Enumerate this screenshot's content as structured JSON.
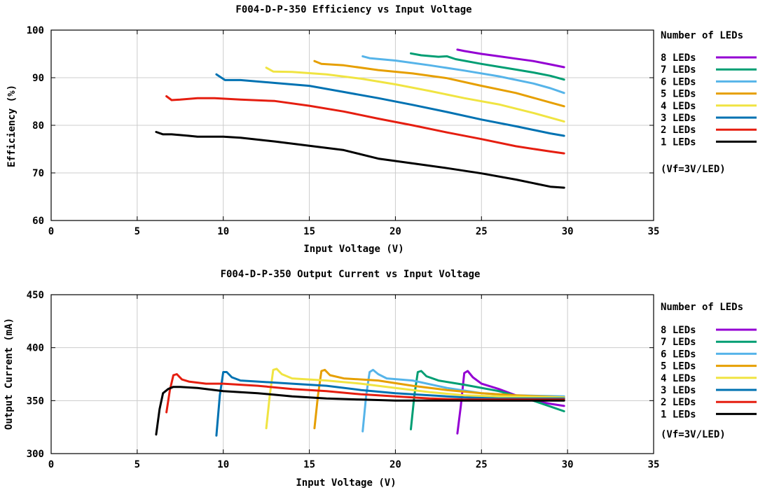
{
  "colors": {
    "8 LEDs": "#9400d3",
    "7 LEDs": "#009e73",
    "6 LEDs": "#56b4e9",
    "5 LEDs": "#e69f00",
    "4 LEDs": "#f0e442",
    "3 LEDs": "#0072b2",
    "2 LEDs": "#e51e10",
    "1 LEDs": "#000000"
  },
  "chart_data": [
    {
      "type": "line",
      "title": "F004-D-P-350 Efficiency vs Input Voltage",
      "xlabel": "Input Voltage (V)",
      "ylabel": "Efficiency (%)",
      "xlim": [
        0,
        35
      ],
      "ylim": [
        60,
        100
      ],
      "xticks": [
        "0",
        "5",
        "10",
        "15",
        "20",
        "25",
        "30",
        "35"
      ],
      "yticks": [
        "60",
        "70",
        "80",
        "90",
        "100"
      ],
      "grid": true,
      "legend": {
        "title": "Number of LEDs",
        "placement": "right",
        "note": "(Vf=3V/LED)",
        "entries": [
          "8 LEDs",
          "7 LEDs",
          "6 LEDs",
          "5 LEDs",
          "4 LEDs",
          "3 LEDs",
          "2 LEDs",
          "1 LEDs"
        ]
      },
      "series": [
        {
          "name": "8 LEDs",
          "x": [
            23.6,
            24.0,
            25,
            26,
            27,
            28,
            29,
            29.8
          ],
          "y": [
            95.9,
            95.6,
            95.0,
            94.5,
            94.0,
            93.5,
            92.8,
            92.2
          ]
        },
        {
          "name": "7 LEDs",
          "x": [
            20.9,
            21.5,
            22.5,
            23.0,
            23.5,
            25,
            26,
            27,
            28,
            29,
            29.8
          ],
          "y": [
            95.1,
            94.7,
            94.4,
            94.5,
            93.9,
            92.9,
            92.3,
            91.7,
            91.1,
            90.4,
            89.6
          ]
        },
        {
          "name": "6 LEDs",
          "x": [
            18.1,
            18.5,
            20,
            22,
            24,
            26,
            28,
            29,
            29.8
          ],
          "y": [
            94.5,
            94.1,
            93.6,
            92.6,
            91.5,
            90.3,
            88.8,
            87.8,
            86.8
          ]
        },
        {
          "name": "5 LEDs",
          "x": [
            15.3,
            15.7,
            17,
            19,
            21,
            23,
            25,
            27,
            29,
            29.8
          ],
          "y": [
            93.5,
            92.9,
            92.6,
            91.6,
            90.9,
            89.9,
            88.3,
            86.8,
            84.8,
            84.0
          ]
        },
        {
          "name": "4 LEDs",
          "x": [
            12.5,
            12.9,
            14,
            16,
            18,
            20,
            22,
            24,
            26,
            28,
            29.8
          ],
          "y": [
            92.1,
            91.3,
            91.2,
            90.7,
            89.8,
            88.6,
            87.2,
            85.7,
            84.4,
            82.6,
            80.8
          ]
        },
        {
          "name": "3 LEDs",
          "x": [
            9.6,
            10.1,
            11,
            13,
            15,
            17,
            19,
            21,
            23,
            25,
            27,
            29,
            29.8
          ],
          "y": [
            90.7,
            89.5,
            89.5,
            88.9,
            88.3,
            87.0,
            85.7,
            84.3,
            82.8,
            81.2,
            79.8,
            78.3,
            77.8
          ]
        },
        {
          "name": "2 LEDs",
          "x": [
            6.7,
            7.0,
            7.5,
            8.5,
            9.5,
            11,
            13,
            15,
            17,
            19,
            21,
            23,
            25,
            27,
            29,
            29.8
          ],
          "y": [
            86.1,
            85.3,
            85.4,
            85.7,
            85.7,
            85.4,
            85.1,
            84.1,
            82.9,
            81.4,
            80.0,
            78.5,
            77.1,
            75.6,
            74.5,
            74.1
          ]
        },
        {
          "name": "1 LEDs",
          "x": [
            6.1,
            6.5,
            7.0,
            8.0,
            8.5,
            9.0,
            10,
            11,
            13,
            15,
            17,
            19,
            21,
            23,
            25,
            27,
            29,
            29.8
          ],
          "y": [
            78.6,
            78.1,
            78.1,
            77.8,
            77.6,
            77.6,
            77.6,
            77.4,
            76.6,
            75.7,
            74.8,
            73.0,
            72.0,
            71.0,
            69.9,
            68.6,
            67.1,
            66.9
          ]
        }
      ]
    },
    {
      "type": "line",
      "title": "F004-D-P-350 Output Current vs Input Voltage",
      "xlabel": "Input Voltage (V)",
      "ylabel": "Output Current (mA)",
      "xlim": [
        0,
        35
      ],
      "ylim": [
        300,
        450
      ],
      "xticks": [
        "0",
        "5",
        "10",
        "15",
        "20",
        "25",
        "30",
        "35"
      ],
      "yticks": [
        "300",
        "350",
        "400",
        "450"
      ],
      "grid": true,
      "legend": {
        "title": "Number of LEDs",
        "placement": "right",
        "note": "(Vf=3V/LED)",
        "entries": [
          "8 LEDs",
          "7 LEDs",
          "6 LEDs",
          "5 LEDs",
          "4 LEDs",
          "3 LEDs",
          "2 LEDs",
          "1 LEDs"
        ]
      },
      "series": [
        {
          "name": "8 LEDs",
          "x": [
            23.6,
            23.8,
            24.0,
            24.2,
            24.5,
            25,
            26,
            27,
            28,
            29,
            29.8
          ],
          "y": [
            319,
            345,
            376,
            378,
            372,
            366,
            361,
            355,
            350,
            347,
            345
          ]
        },
        {
          "name": "7 LEDs",
          "x": [
            20.9,
            21.1,
            21.3,
            21.5,
            21.8,
            22.5,
            24,
            26,
            28,
            29.8
          ],
          "y": [
            323,
            355,
            377,
            378,
            373,
            369,
            365,
            359,
            350,
            340
          ]
        },
        {
          "name": "6 LEDs",
          "x": [
            18.1,
            18.3,
            18.5,
            18.7,
            19.0,
            19.5,
            21,
            23,
            25,
            27,
            29.8
          ],
          "y": [
            321,
            355,
            377,
            379,
            375,
            371,
            369,
            362,
            357,
            355,
            354
          ]
        },
        {
          "name": "5 LEDs",
          "x": [
            15.3,
            15.5,
            15.7,
            15.9,
            16.2,
            17,
            19,
            21,
            23,
            25,
            27,
            29.8
          ],
          "y": [
            324,
            355,
            378,
            379,
            374,
            371,
            369,
            364,
            360,
            357,
            355,
            353
          ]
        },
        {
          "name": "4 LEDs",
          "x": [
            12.5,
            12.7,
            12.9,
            13.1,
            13.4,
            14,
            16,
            18,
            20,
            22,
            24,
            26,
            29.8
          ],
          "y": [
            324,
            355,
            379,
            380,
            375,
            371,
            369,
            366,
            362,
            358,
            355,
            354,
            353
          ]
        },
        {
          "name": "3 LEDs",
          "x": [
            9.6,
            9.8,
            10.0,
            10.2,
            10.5,
            11,
            12,
            14,
            16,
            18,
            20,
            22,
            24,
            26,
            29.8
          ],
          "y": [
            317,
            355,
            377,
            377,
            372,
            369,
            368,
            366,
            364,
            360,
            357,
            355,
            353,
            352,
            352
          ]
        },
        {
          "name": "2 LEDs",
          "x": [
            6.7,
            6.9,
            7.1,
            7.3,
            7.6,
            8,
            9,
            10,
            12,
            14,
            16,
            18,
            20,
            22,
            24,
            26,
            29.8
          ],
          "y": [
            339,
            360,
            374,
            375,
            370,
            368,
            366,
            366,
            364,
            361,
            359,
            356,
            354,
            352,
            351,
            351,
            351
          ]
        },
        {
          "name": "1 LEDs",
          "x": [
            6.1,
            6.3,
            6.5,
            6.8,
            7.1,
            7.5,
            8.5,
            10,
            12,
            14,
            16,
            18,
            20,
            22,
            24,
            26,
            29.8
          ],
          "y": [
            318,
            342,
            357,
            361,
            363,
            363,
            362,
            359,
            357,
            354,
            352,
            351,
            350,
            350,
            350,
            350,
            350
          ]
        }
      ]
    }
  ]
}
